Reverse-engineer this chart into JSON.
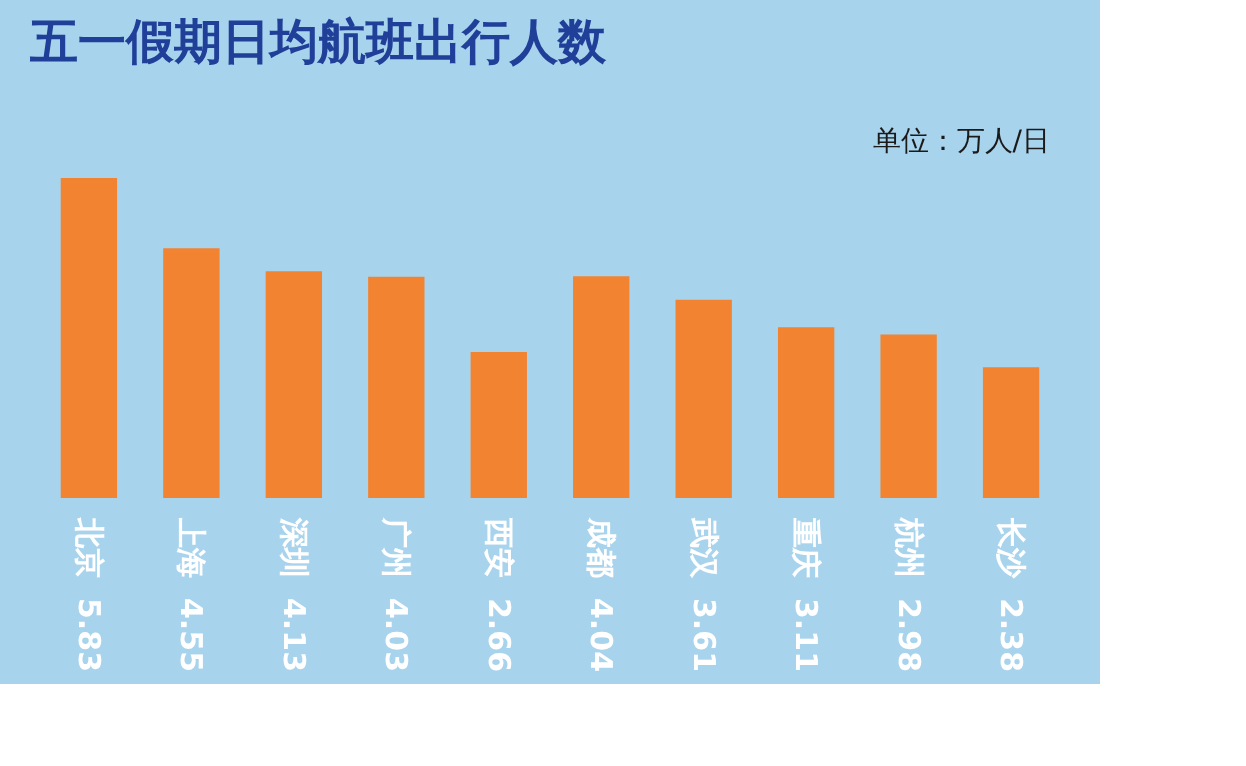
{
  "chart_data": {
    "type": "bar",
    "title": "五一假期日均航班出行人数",
    "categories": [
      "北京",
      "上海",
      "深圳",
      "广州",
      "西安",
      "成都",
      "武汉",
      "重庆",
      "杭州",
      "长沙"
    ],
    "values": [
      5.83,
      4.55,
      4.13,
      4.03,
      2.66,
      4.04,
      3.61,
      3.11,
      2.98,
      2.38
    ],
    "color": "#f28330",
    "data_labels": true,
    "annotations": [
      "单位：万人/日"
    ]
  }
}
